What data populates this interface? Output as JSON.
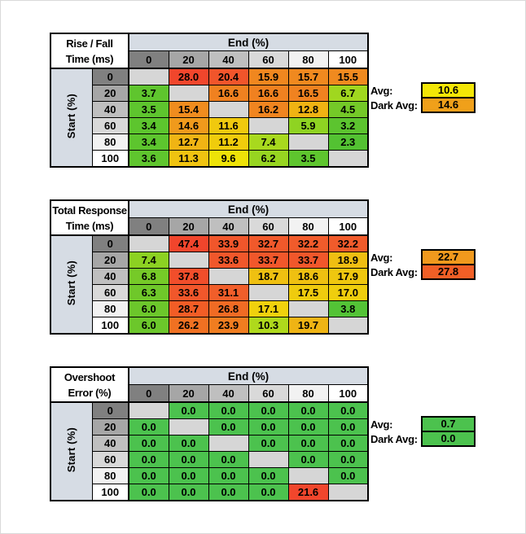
{
  "page": {
    "background": "#FFFFFF",
    "frame_border": "#D9D9D9"
  },
  "grid_style": {
    "header_fills": [
      "#808080",
      "#A6A6A6",
      "#BFBFBF",
      "#D9D9D9",
      "#F2F2F2",
      "#FFFFFF"
    ],
    "band_fill": "#D6DCE4",
    "blank_fill": "#D6D6D6",
    "title_fill": "#FFFFFF",
    "border_color": "#000000"
  },
  "chart_data": [
    {
      "id": "rise-fall-time",
      "type": "heatmap",
      "title": "Rise / Fall Time (ms)",
      "title_lines": [
        "Rise / Fall",
        "Time (ms)"
      ],
      "x_axis_label": "End (%)",
      "y_axis_label": "Start (%)",
      "x_ticks": [
        0,
        20,
        40,
        60,
        80,
        100
      ],
      "y_ticks": [
        0,
        20,
        40,
        60,
        80,
        100
      ],
      "values": [
        [
          null,
          28.0,
          20.4,
          15.9,
          15.7,
          15.5
        ],
        [
          3.7,
          null,
          16.6,
          16.6,
          16.5,
          6.7
        ],
        [
          3.5,
          15.4,
          null,
          16.2,
          12.8,
          4.5
        ],
        [
          3.4,
          14.6,
          11.6,
          null,
          5.9,
          3.2
        ],
        [
          3.4,
          12.7,
          11.2,
          7.4,
          null,
          2.3
        ],
        [
          3.6,
          11.3,
          9.6,
          6.2,
          3.5,
          null
        ]
      ],
      "cell_colors": [
        [
          null,
          "#F1462C",
          "#F1552B",
          "#F0871F",
          "#F0891F",
          "#F08A1F"
        ],
        [
          "#5FC52E",
          null,
          "#F08120",
          "#F08120",
          "#F08220",
          "#A0D71F"
        ],
        [
          "#5EC52E",
          "#F08C1F",
          null,
          "#F08520",
          "#F0B313",
          "#74C928"
        ],
        [
          "#5DC52E",
          "#F09A1C",
          "#F0C90E",
          null,
          "#8FD322",
          "#5CC42F"
        ],
        [
          "#5DC52E",
          "#F0B414",
          "#F0CC0C",
          "#A8D91E",
          null,
          "#53C232"
        ],
        [
          "#5FC52E",
          "#F0C311",
          "#EDE208",
          "#97D521",
          "#5EC52E",
          null
        ]
      ],
      "side": {
        "avg_label": "Avg:",
        "avg_value": 10.6,
        "avg_color": "#F3E606",
        "dark_avg_label": "Dark Avg:",
        "dark_avg_value": 14.6,
        "dark_avg_color": "#F0A01A"
      }
    },
    {
      "id": "total-response-time",
      "type": "heatmap",
      "title": "Total Response Time (ms)",
      "title_lines": [
        "Total Response",
        "Time (ms)"
      ],
      "x_axis_label": "End (%)",
      "y_axis_label": "Start (%)",
      "x_ticks": [
        0,
        20,
        40,
        60,
        80,
        100
      ],
      "y_ticks": [
        0,
        20,
        40,
        60,
        80,
        100
      ],
      "values": [
        [
          null,
          47.4,
          33.9,
          32.7,
          32.2,
          32.2
        ],
        [
          7.4,
          null,
          33.6,
          33.7,
          33.7,
          18.9
        ],
        [
          6.8,
          37.8,
          null,
          18.7,
          18.6,
          17.9
        ],
        [
          6.3,
          33.6,
          31.1,
          null,
          17.5,
          17.0
        ],
        [
          6.0,
          28.7,
          26.8,
          17.1,
          null,
          3.8
        ],
        [
          6.0,
          26.2,
          23.9,
          10.3,
          19.7,
          null
        ]
      ],
      "cell_colors": [
        [
          null,
          "#F1452C",
          "#F1562B",
          "#F1592B",
          "#F15B2B",
          "#F15B2B"
        ],
        [
          "#8CD122",
          null,
          "#F1572B",
          "#F1572B",
          "#F1572B",
          "#EFBE12"
        ],
        [
          "#76CA28",
          "#F14E2B",
          null,
          "#EFC011",
          "#EFC011",
          "#EFC70F"
        ],
        [
          "#6FC82A",
          "#F1572B",
          "#F15E2A",
          null,
          "#EFCB0E",
          "#EFCE0D"
        ],
        [
          "#6CC72B",
          "#F25D26",
          "#F06B24",
          "#F0D10D",
          null,
          "#53C336"
        ],
        [
          "#6CC72B",
          "#F07122",
          "#F07D20",
          "#AFD91C",
          "#EFB414",
          null
        ]
      ],
      "side": {
        "avg_label": "Avg:",
        "avg_value": 22.7,
        "avg_color": "#F0991D",
        "dark_avg_label": "Dark Avg:",
        "dark_avg_value": 27.8,
        "dark_avg_color": "#F15F26"
      }
    },
    {
      "id": "overshoot-error",
      "type": "heatmap",
      "title": "Overshoot Error (%)",
      "title_lines": [
        "Overshoot",
        "Error (%)"
      ],
      "x_axis_label": "End (%)",
      "y_axis_label": "Start (%)",
      "x_ticks": [
        0,
        20,
        40,
        60,
        80,
        100
      ],
      "y_ticks": [
        0,
        20,
        40,
        60,
        80,
        100
      ],
      "values": [
        [
          null,
          0.0,
          0.0,
          0.0,
          0.0,
          0.0
        ],
        [
          0.0,
          null,
          0.0,
          0.0,
          0.0,
          0.0
        ],
        [
          0.0,
          0.0,
          null,
          0.0,
          0.0,
          0.0
        ],
        [
          0.0,
          0.0,
          0.0,
          null,
          0.0,
          0.0
        ],
        [
          0.0,
          0.0,
          0.0,
          0.0,
          null,
          0.0
        ],
        [
          0.0,
          0.0,
          0.0,
          0.0,
          21.6,
          null
        ]
      ],
      "cell_colors": [
        [
          null,
          "#4CC24E",
          "#4CC24E",
          "#4CC24E",
          "#4CC24E",
          "#4CC24E"
        ],
        [
          "#4CC24E",
          null,
          "#4CC24E",
          "#4CC24E",
          "#4CC24E",
          "#4CC24E"
        ],
        [
          "#4CC24E",
          "#4CC24E",
          null,
          "#4CC24E",
          "#4CC24E",
          "#4CC24E"
        ],
        [
          "#4CC24E",
          "#4CC24E",
          "#4CC24E",
          null,
          "#4CC24E",
          "#4CC24E"
        ],
        [
          "#4CC24E",
          "#4CC24E",
          "#4CC24E",
          "#4CC24E",
          null,
          "#4CC24E"
        ],
        [
          "#4CC24E",
          "#4CC24E",
          "#4CC24E",
          "#4CC24E",
          "#F1462C",
          null
        ]
      ],
      "side": {
        "avg_label": "Avg:",
        "avg_value": 0.7,
        "avg_color": "#4CC24E",
        "dark_avg_label": "Dark Avg:",
        "dark_avg_value": 0.0,
        "dark_avg_color": "#4CC24E"
      }
    }
  ]
}
